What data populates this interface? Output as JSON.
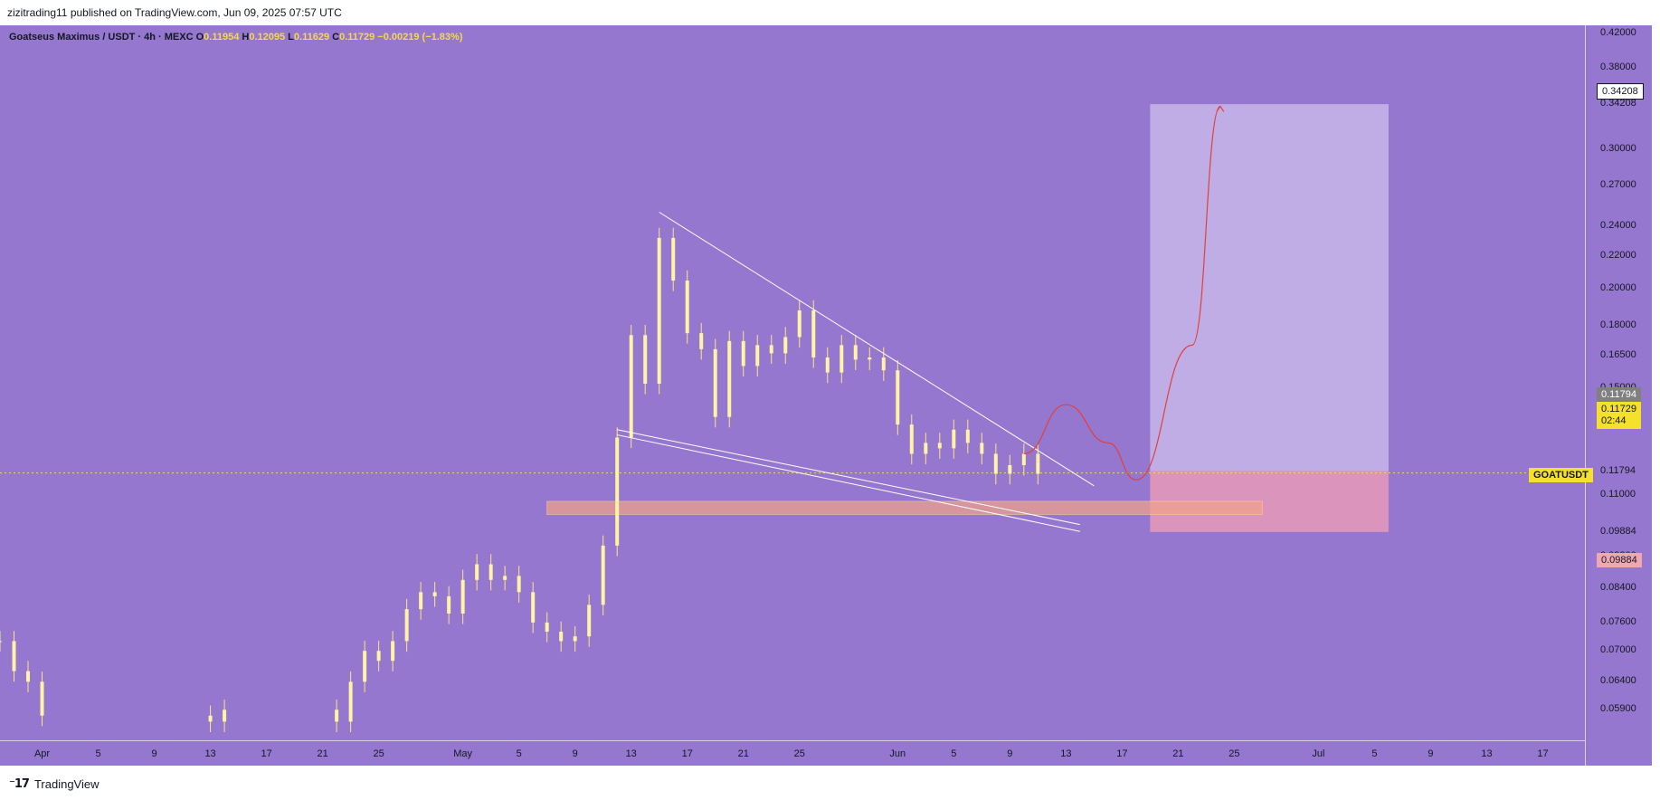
{
  "header": {
    "publisher_text": "zizitrading11 published on TradingView.com, Jun 09, 2025 07:57 UTC"
  },
  "legend": {
    "title": "Goatseus Maximus / USDT · 4h · MEXC",
    "o_label": "O",
    "o_value": "0.11954",
    "h_label": "H",
    "h_value": "0.12095",
    "l_label": "L",
    "l_value": "0.11629",
    "c_label": "C",
    "c_value": "0.11729",
    "change": "−0.00219 (−1.83%)"
  },
  "footer": {
    "brand": "TradingView",
    "logo_icon": "tradingview-logo-icon"
  },
  "badges": {
    "target": "0.34208",
    "entry": "0.11794",
    "symbol": "GOATUSDT",
    "last_price": "0.11729",
    "countdown": "02:44",
    "stop": "0.09884"
  },
  "colors": {
    "background": "#9677cf",
    "candle": "#fff3a6",
    "candle_wick": "#ffe680",
    "trendline": "#ffffff",
    "projection": "#e0403a",
    "target_zone": "#c9b6ea",
    "stop_zone": "#e79ab8",
    "support_zone": "#f3a38a",
    "last_price_badge": "#f5e02c",
    "stop_badge": "#f0a7b2"
  },
  "chart_data": {
    "type": "candlestick",
    "title": "Goatseus Maximus / USDT · 4h · MEXC",
    "scale": "log",
    "ylim": [
      0.054,
      0.43
    ],
    "y_ticks": [
      "0.42000",
      "0.38000",
      "0.34208",
      "0.30000",
      "0.27000",
      "0.24000",
      "0.22000",
      "0.20000",
      "0.18000",
      "0.16500",
      "0.15000",
      "0.13500",
      "0.11794",
      "0.11000",
      "0.09884",
      "0.09200",
      "0.08400",
      "0.07600",
      "0.07000",
      "0.06400",
      "0.05900"
    ],
    "x_ticks": [
      "Apr",
      "5",
      "9",
      "13",
      "17",
      "21",
      "25",
      "May",
      "5",
      "9",
      "13",
      "17",
      "21",
      "25",
      "Jun",
      "5",
      "9",
      "13",
      "17",
      "21",
      "25",
      "Jul",
      "5",
      "9",
      "13",
      "17"
    ],
    "x_range": [
      "2025-03-29",
      "2025-07-20"
    ],
    "series": [
      {
        "name": "GOATUSDT",
        "points": [
          [
            "2025-03-29",
            0.072
          ],
          [
            "2025-03-30",
            0.066
          ],
          [
            "2025-03-31",
            0.064
          ],
          [
            "2025-04-01",
            0.058
          ],
          [
            "2025-04-13",
            0.057
          ],
          [
            "2025-04-14",
            0.059
          ],
          [
            "2025-04-22",
            0.057
          ],
          [
            "2025-04-23",
            0.064
          ],
          [
            "2025-04-24",
            0.07
          ],
          [
            "2025-04-25",
            0.068
          ],
          [
            "2025-04-26",
            0.072
          ],
          [
            "2025-04-27",
            0.079
          ],
          [
            "2025-04-28",
            0.083
          ],
          [
            "2025-04-29",
            0.082
          ],
          [
            "2025-04-30",
            0.078
          ],
          [
            "2025-05-01",
            0.086
          ],
          [
            "2025-05-02",
            0.09
          ],
          [
            "2025-05-03",
            0.086
          ],
          [
            "2025-05-04",
            0.087
          ],
          [
            "2025-05-05",
            0.083
          ],
          [
            "2025-05-06",
            0.076
          ],
          [
            "2025-05-07",
            0.074
          ],
          [
            "2025-05-08",
            0.072
          ],
          [
            "2025-05-09",
            0.073
          ],
          [
            "2025-05-10",
            0.08
          ],
          [
            "2025-05-11",
            0.095
          ],
          [
            "2025-05-12",
            0.13
          ],
          [
            "2025-05-13",
            0.175
          ],
          [
            "2025-05-14",
            0.152
          ],
          [
            "2025-05-15",
            0.232
          ],
          [
            "2025-05-16",
            0.205
          ],
          [
            "2025-05-17",
            0.176
          ],
          [
            "2025-05-18",
            0.168
          ],
          [
            "2025-05-19",
            0.138
          ],
          [
            "2025-05-20",
            0.172
          ],
          [
            "2025-05-21",
            0.16
          ],
          [
            "2025-05-22",
            0.17
          ],
          [
            "2025-05-23",
            0.166
          ],
          [
            "2025-05-24",
            0.174
          ],
          [
            "2025-05-25",
            0.188
          ],
          [
            "2025-05-26",
            0.164
          ],
          [
            "2025-05-27",
            0.157
          ],
          [
            "2025-05-28",
            0.17
          ],
          [
            "2025-05-29",
            0.163
          ],
          [
            "2025-05-30",
            0.164
          ],
          [
            "2025-05-31",
            0.158
          ],
          [
            "2025-06-01",
            0.135
          ],
          [
            "2025-06-02",
            0.124
          ],
          [
            "2025-06-03",
            0.128
          ],
          [
            "2025-06-04",
            0.126
          ],
          [
            "2025-06-05",
            0.133
          ],
          [
            "2025-06-06",
            0.128
          ],
          [
            "2025-06-07",
            0.124
          ],
          [
            "2025-06-08",
            0.117
          ],
          [
            "2025-06-09",
            0.12
          ],
          [
            "2025-06-10",
            0.124
          ],
          [
            "2025-06-11",
            0.121
          ],
          [
            "2025-06-11",
            0.117
          ]
        ]
      }
    ],
    "drawings": {
      "wedge_upper": [
        [
          "2025-05-15",
          0.25
        ],
        [
          "2025-06-15",
          0.113
        ]
      ],
      "wedge_lower_1": [
        [
          "2025-05-12",
          0.133
        ],
        [
          "2025-06-14",
          0.101
        ]
      ],
      "wedge_lower_2": [
        [
          "2025-05-12",
          0.131
        ],
        [
          "2025-06-14",
          0.099
        ]
      ],
      "support_zone": {
        "from": "2025-05-07",
        "to": "2025-06-27",
        "low": 0.104,
        "high": 0.108
      },
      "target_zone": {
        "from": "2025-06-19",
        "to": "2025-07-06",
        "low": 0.11794,
        "high": 0.34208
      },
      "stop_zone": {
        "from": "2025-06-19",
        "to": "2025-07-06",
        "low": 0.09884,
        "high": 0.11794
      },
      "projection_path": [
        [
          "2025-06-10",
          0.124
        ],
        [
          "2025-06-13",
          0.143
        ],
        [
          "2025-06-16",
          0.128
        ],
        [
          "2025-06-18",
          0.115
        ],
        [
          "2025-06-22",
          0.17
        ],
        [
          "2025-06-24",
          0.34
        ]
      ]
    },
    "last_price": 0.11729
  }
}
